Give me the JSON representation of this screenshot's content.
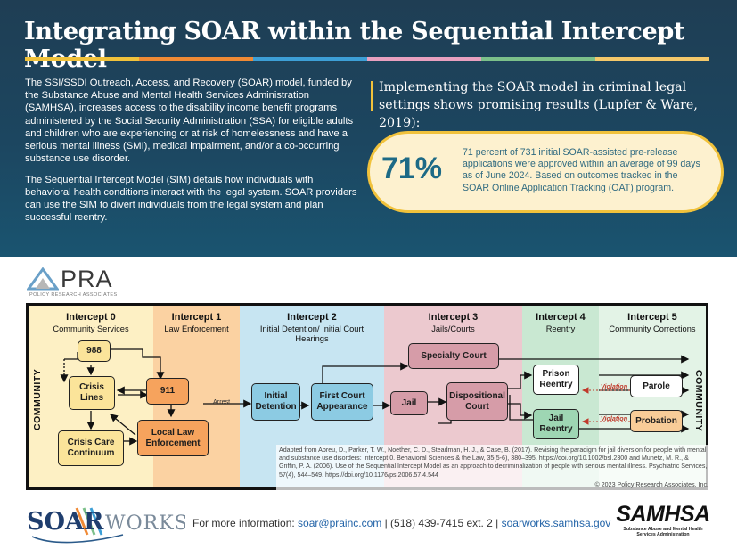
{
  "header": {
    "title": "Integrating SOAR within the Sequential Intercept Model",
    "rainbow": [
      "#f1c23b",
      "#f08a35",
      "#3d9fd6",
      "#e8a0bf",
      "#7cc08a",
      "#f4c86a"
    ]
  },
  "intro": {
    "p1": "The SSI/SSDI Outreach, Access, and Recovery (SOAR) model, funded by the Substance Abuse and Mental Health Services Administration (SAMHSA), increases access to the disability income benefit programs administered by the Social Security Administration (SSA) for eligible adults and children who are experiencing or at risk of homelessness and have a serious mental illness (SMI), medical impairment, and/or a co-occurring substance use disorder.",
    "p2": "The Sequential Intercept Model (SIM) details how individuals with behavioral health conditions interact with the legal system. SOAR providers can use the SIM to divert individuals from the legal system and plan successful reentry."
  },
  "highlight": {
    "quote": "Implementing the SOAR model in criminal legal settings shows promising results (Lupfer & Ware, 2019):",
    "stat": "71%",
    "text": "71 percent of 731 initial SOAR-assisted pre-release applications were approved within an average of 99 days as of June 2024. Based on outcomes tracked in the SOAR Online Application Tracking (OAT) program."
  },
  "pra": {
    "word": "PRA",
    "subtitle": "POLICY RESEARCH ASSOCIATES"
  },
  "sim": {
    "side_label": "COMMUNITY",
    "columns": [
      {
        "title": "Intercept 0",
        "subtitle": "Community Services",
        "color": "#fdf0c4"
      },
      {
        "title": "Intercept 1",
        "subtitle": "Law Enforcement",
        "color": "#fbd2a2"
      },
      {
        "title": "Intercept 2",
        "subtitle": "Initial Detention/ Initial Court Hearings",
        "color": "#c7e5f2"
      },
      {
        "title": "Intercept 3",
        "subtitle": "Jails/Courts",
        "color": "#ecc9cf"
      },
      {
        "title": "Intercept 4",
        "subtitle": "Reentry",
        "color": "#c9e8d2"
      },
      {
        "title": "Intercept 5",
        "subtitle": "Community Corrections",
        "color": "#e3f3e6"
      }
    ],
    "boxes": {
      "b988": "988",
      "crisis_lines": "Crisis Lines",
      "crisis_care": "Crisis Care Continuum",
      "b911": "911",
      "local_law": "Local Law Enforcement",
      "initial_detention": "Initial Detention",
      "first_court": "First Court Appearance",
      "jail": "Jail",
      "specialty_court": "Specialty Court",
      "dispositional": "Dispositional Court",
      "prison_reentry": "Prison Reentry",
      "jail_reentry": "Jail Reentry",
      "parole": "Parole",
      "probation": "Probation"
    },
    "arrest_label": "Arrest",
    "violation_label": "Violation",
    "citation": {
      "line1": "Adapted from Abreu, D., Parker, T. W., Noether, C. D., Steadman, H. J., & Case, B. (2017). Revising the paradigm for jail diversion for people with mental and substance use disorders: Intercept 0. Behavioral Sciences & the Law, 35(5-6), 380–395. https://doi.org/10.1002/bsl.2300 and Munetz, M. R., & Griffin, P. A. (2006). Use of the Sequential Intercept Model as an approach to decriminalization of people with serious mental illness. Psychiatric Services, 57(4), 544–549. https://doi.org/10.1176/ps.2006.57.4.544",
      "copyright": "© 2023 Policy Research Associates, Inc."
    }
  },
  "footer": {
    "logo_soar": "SOAR",
    "logo_works": "WORKS",
    "prefix": "For more information: ",
    "email": "soar@prainc.com",
    "sep1": " | (518) 439-7415 ext. 2 | ",
    "site": "soarworks.samhsa.gov",
    "samhsa": "SAMHSA",
    "samhsa_sub1": "Substance Abuse and Mental Health",
    "samhsa_sub2": "Services Administration"
  }
}
